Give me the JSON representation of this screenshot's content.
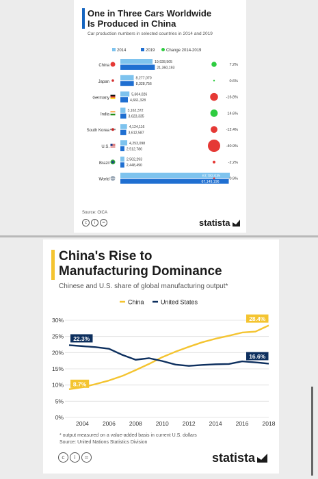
{
  "top_card": {
    "title_line1": "One in Three Cars Worldwide",
    "title_line2": "Is Produced in China",
    "subtitle": "Car production numbers in selected countries in 2014 and 2019",
    "source": "Source: OICA",
    "logo": "statista"
  },
  "bottom_card": {
    "title_line1": "China's Rise to",
    "title_line2": "Manufacturing Dominance",
    "subtitle": "Chinese and U.S. share of global manufacturing output*",
    "footnote": "* output measured on a value-added basis in current U.S. dollars",
    "source": "Source: United Nations Statistics Division",
    "logo": "statista"
  },
  "colors": {
    "accent_blue": "#1565c0",
    "bar_2014": "#7ec3ee",
    "bar_2019": "#1f6fd1",
    "dot_green": "#2ecc40",
    "dot_red": "#e53935",
    "china_line": "#f4c430",
    "us_line": "#0d2f5e",
    "accent_yellow": "#f4c430"
  },
  "chart_data": [
    {
      "type": "bar",
      "legend": [
        "2014",
        "2019",
        "Change 2014-2019"
      ],
      "categories": [
        "China",
        "Japan",
        "Germany",
        "India",
        "South Korea",
        "U.S.",
        "Brazil",
        "World"
      ],
      "series": [
        {
          "name": "2014",
          "values": [
            19928505,
            8277070,
            5604026,
            3162372,
            4124116,
            4253098,
            2502293,
            67782035
          ],
          "labels": [
            "19,928,505",
            "8,277,070",
            "5,604,026",
            "3,162,372",
            "4,124,116",
            "4,253,098",
            "2,502,293",
            "67,782,035"
          ]
        },
        {
          "name": "2019",
          "values": [
            21360193,
            8328756,
            4661328,
            3623335,
            3612587,
            2512780,
            2448490,
            67149196
          ],
          "labels": [
            "21,360,193",
            "8,328,756",
            "4,661,328",
            "3,623,335",
            "3,612,587",
            "2,512,780",
            "2,448,490",
            "67,149,196"
          ]
        }
      ],
      "change": [
        7.2,
        0.6,
        -16.8,
        14.6,
        -12.4,
        -40.9,
        -2.2,
        -0.9
      ],
      "change_labels": [
        "7.2%",
        "0.6%",
        "-16.8%",
        "14.6%",
        "-12.4%",
        "-40.9%",
        "-2.2%",
        "-0.9%"
      ],
      "flags": [
        "china",
        "japan",
        "germany",
        "india",
        "south-korea",
        "usa",
        "brazil",
        "world"
      ]
    },
    {
      "type": "line",
      "x": [
        2003,
        2004,
        2005,
        2006,
        2007,
        2008,
        2009,
        2010,
        2011,
        2012,
        2013,
        2014,
        2015,
        2016,
        2017,
        2018
      ],
      "xticks": [
        2004,
        2006,
        2008,
        2010,
        2012,
        2014,
        2016,
        2018
      ],
      "yticks": [
        0,
        5,
        10,
        15,
        20,
        25,
        30
      ],
      "ytick_labels": [
        "0%",
        "5%",
        "10%",
        "15%",
        "20%",
        "25%",
        "30%"
      ],
      "ylim": [
        0,
        30
      ],
      "xlim": [
        2003,
        2018
      ],
      "series": [
        {
          "name": "China",
          "values": [
            8.7,
            9.3,
            10.3,
            11.4,
            12.8,
            14.6,
            16.5,
            18.6,
            20.3,
            21.8,
            23.2,
            24.3,
            25.2,
            26.2,
            26.5,
            28.4
          ]
        },
        {
          "name": "United States",
          "values": [
            22.3,
            22.0,
            21.7,
            21.2,
            19.3,
            17.8,
            18.3,
            17.4,
            16.3,
            15.9,
            16.2,
            16.4,
            16.5,
            17.3,
            17.0,
            16.6
          ]
        }
      ],
      "callouts": {
        "china_start": "8.7%",
        "china_end": "28.4%",
        "us_start": "22.3%",
        "us_end": "16.6%"
      }
    }
  ]
}
